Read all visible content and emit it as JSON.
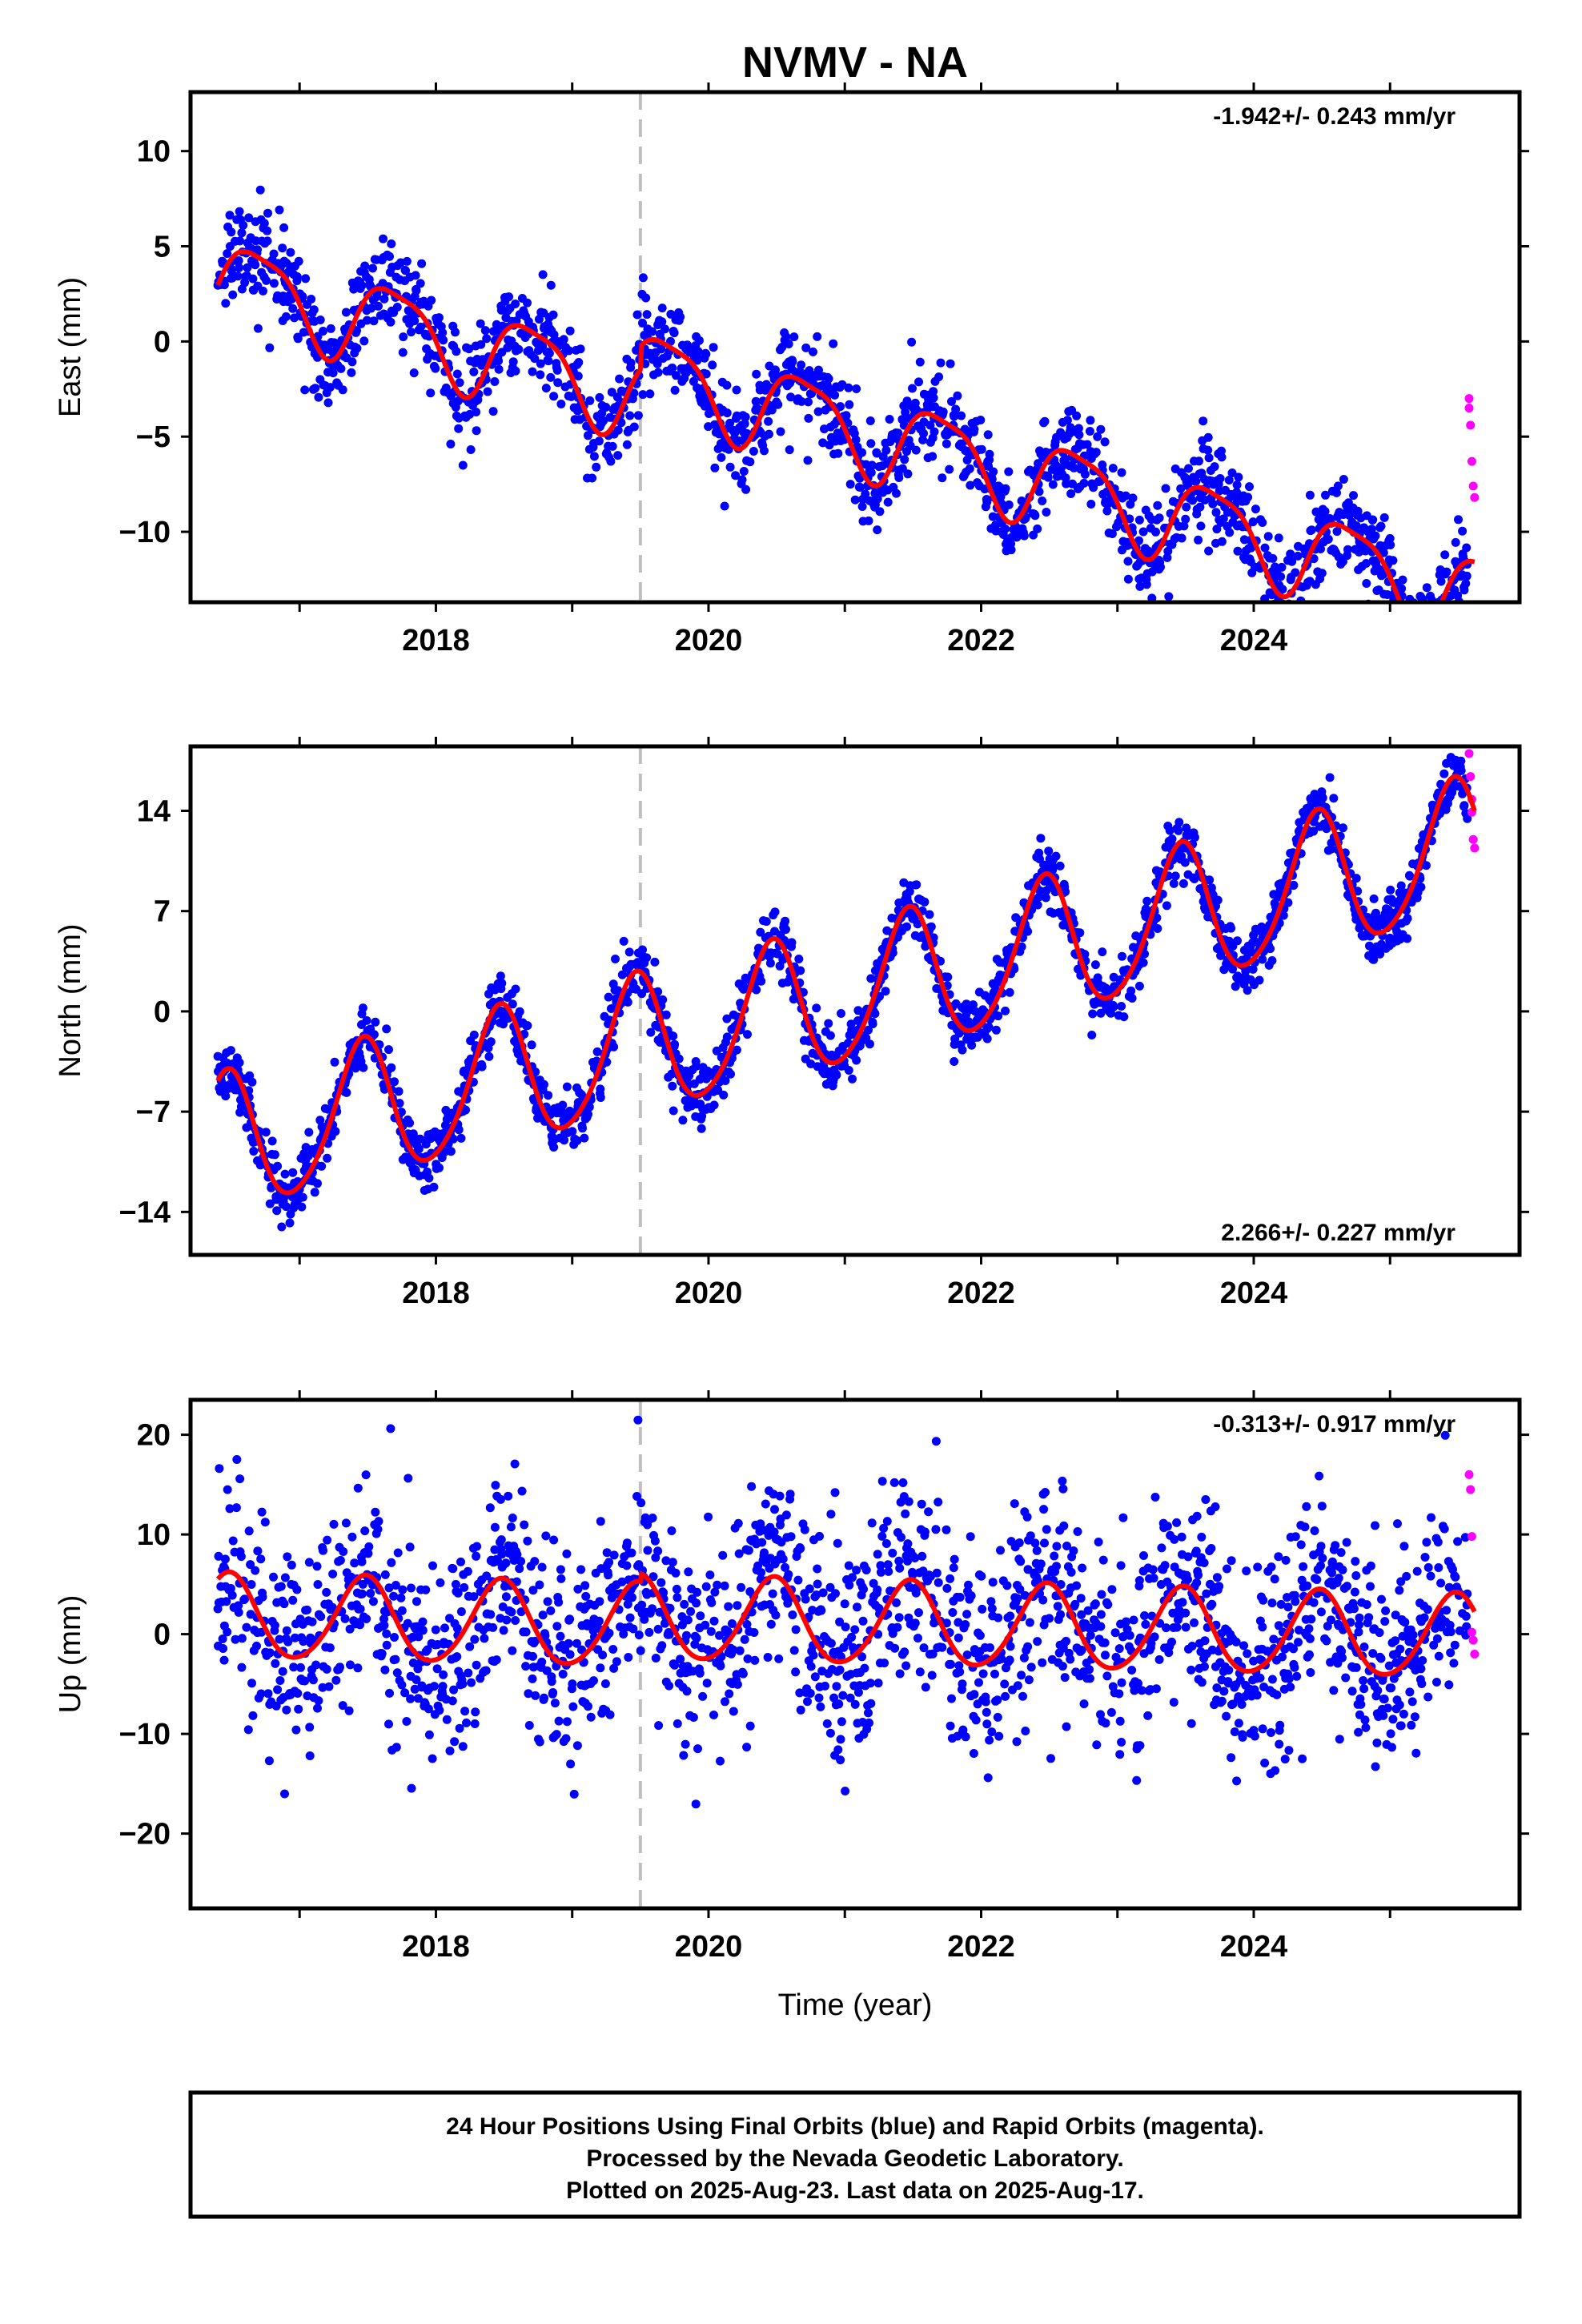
{
  "title": "NVMV - NA",
  "xlabel": "Time (year)",
  "colors": {
    "final": "#0000ff",
    "rapid": "#ff00ff",
    "fit": "#ff0000",
    "event": "#bfbfbf"
  },
  "footer": {
    "line1": "24 Hour Positions Using Final Orbits (blue) and Rapid Orbits (magenta).",
    "line2": "Processed by the Nevada Geodetic Laboratory.",
    "line3": "Plotted on 2025-Aug-23. Last data on 2025-Aug-17."
  },
  "chart_data": [
    {
      "type": "scatter",
      "component": "East",
      "ylabel": "East (mm)",
      "rate_label": "-1.942+/- 0.243 mm/yr",
      "rate_position": "top-right",
      "xlim": [
        2016.2,
        2025.95
      ],
      "ylim": [
        -13.7,
        13.1
      ],
      "xticks": [
        2018,
        2020,
        2022,
        2024
      ],
      "yticks": [
        -10,
        -5,
        0,
        5,
        10
      ],
      "event_line_x": 2019.5,
      "model": {
        "intercept": 4.5,
        "rate": -1.942,
        "annual_amp": 2.2,
        "annual_phase": -0.3,
        "semiannual_amp": 0.55,
        "semiannual_phase": 0.6,
        "noise_sd": 1.25,
        "t0": 2016.4,
        "offset_at_event": 1.2
      },
      "rapid_points": [
        [
          2025.58,
          -3.0
        ],
        [
          2025.58,
          -3.5
        ],
        [
          2025.59,
          -4.4
        ],
        [
          2025.6,
          -6.3
        ],
        [
          2025.61,
          -7.6
        ],
        [
          2025.62,
          -8.2
        ]
      ]
    },
    {
      "type": "scatter",
      "component": "North",
      "ylabel": "North (mm)",
      "rate_label": "2.266+/- 0.227 mm/yr",
      "rate_position": "bottom-right",
      "xlim": [
        2016.2,
        2025.95
      ],
      "ylim": [
        -17,
        18.5
      ],
      "xticks": [
        2018,
        2020,
        2022,
        2024
      ],
      "yticks": [
        -14,
        -7,
        0,
        7,
        14
      ],
      "event_line_x": 2019.5,
      "model": {
        "intercept": -9.5,
        "rate": 2.266,
        "annual_amp": 4.8,
        "annual_phase": 1.2,
        "semiannual_amp": 0.6,
        "semiannual_phase": 0.3,
        "noise_sd": 1.05,
        "t0": 2016.4,
        "offset_at_event": 0
      },
      "rapid_points": [
        [
          2025.58,
          18.0
        ],
        [
          2025.59,
          16.4
        ],
        [
          2025.6,
          14.8
        ],
        [
          2025.6,
          13.9
        ],
        [
          2025.61,
          12.0
        ],
        [
          2025.62,
          11.4
        ]
      ]
    },
    {
      "type": "scatter",
      "component": "Up",
      "ylabel": "Up (mm)",
      "rate_label": "-0.313+/- 0.917 mm/yr",
      "rate_position": "top-right",
      "xlim": [
        2016.2,
        2025.95
      ],
      "ylim": [
        -27.5,
        23.5
      ],
      "xticks": [
        2018,
        2020,
        2022,
        2024
      ],
      "yticks": [
        -20,
        -10,
        0,
        10,
        20
      ],
      "event_line_x": 2019.5,
      "model": {
        "intercept": 2.5,
        "rate": -0.313,
        "annual_amp": 4.2,
        "annual_phase": 1.1,
        "semiannual_amp": 0.4,
        "semiannual_phase": 0.2,
        "noise_sd": 5.2,
        "t0": 2016.4,
        "offset_at_event": 0.8
      },
      "rapid_points": [
        [
          2025.58,
          16.0
        ],
        [
          2025.59,
          14.5
        ],
        [
          2025.6,
          9.8
        ],
        [
          2025.6,
          0.2
        ],
        [
          2025.61,
          -0.6
        ],
        [
          2025.62,
          -2.0
        ]
      ]
    }
  ]
}
